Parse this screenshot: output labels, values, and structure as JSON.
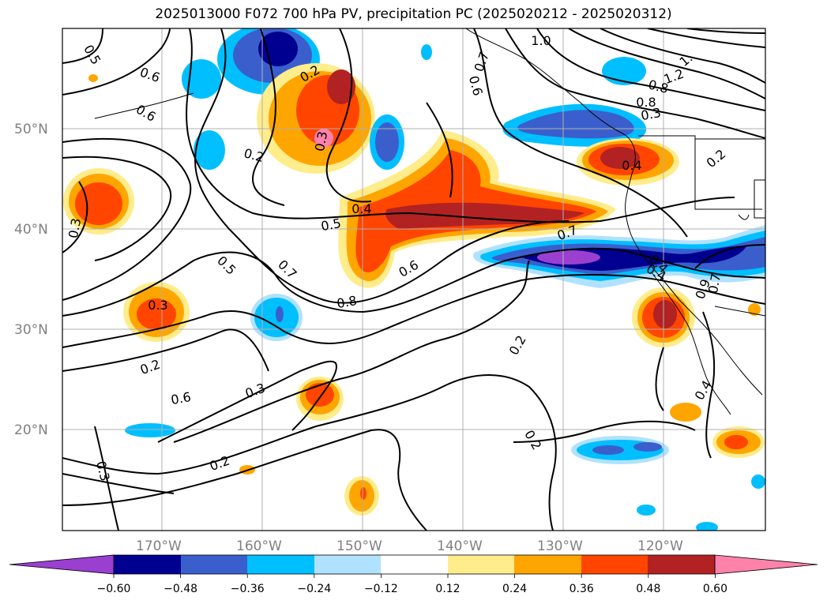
{
  "title": "2025013000 F072 700 hPa PV, precipitation PC (2025020212 - 2025020312)",
  "lat_labels": [
    "50°N",
    "40°N",
    "30°N",
    "20°N"
  ],
  "lon_labels": [
    "170°W",
    "160°W",
    "150°W",
    "140°W",
    "130°W",
    "120°W"
  ],
  "contour_labels": [
    "0.5",
    "0.6",
    "0.6",
    "0.2",
    "0.2",
    "0.3",
    "0.2",
    "1.0",
    "0.7",
    "0.6",
    "0.8",
    "1.2",
    "1.",
    "0.3",
    "0.8",
    "0.7",
    "0.4",
    "0.2",
    "0.3",
    "0.5",
    "0.4",
    "0.7",
    "0.5",
    "0.7",
    "0.8",
    "0.6",
    "0.4",
    "0.9",
    "0.3",
    "0.2",
    "0.4",
    "0.6",
    "0.3",
    "0.2",
    "0.2",
    "0.3",
    "0.4"
  ],
  "colorbar": {
    "ticks": [
      "−0.60",
      "−0.48",
      "−0.36",
      "−0.24",
      "−0.12",
      "0.12",
      "0.24",
      "0.36",
      "0.48",
      "0.60"
    ],
    "colors": {
      "lt_neg060": "#9a3fd0",
      "neg060_neg048": "#000090",
      "neg048_neg036": "#3a5fcd",
      "neg036_neg024": "#00bfff",
      "neg024_neg012": "#b0e2ff",
      "neg012_012": "#ffffff",
      "p012_024": "#ffec8b",
      "p024_036": "#ffa500",
      "p036_048": "#ff4500",
      "p048_060": "#b22222",
      "gt_060": "#ff82ab"
    }
  }
}
